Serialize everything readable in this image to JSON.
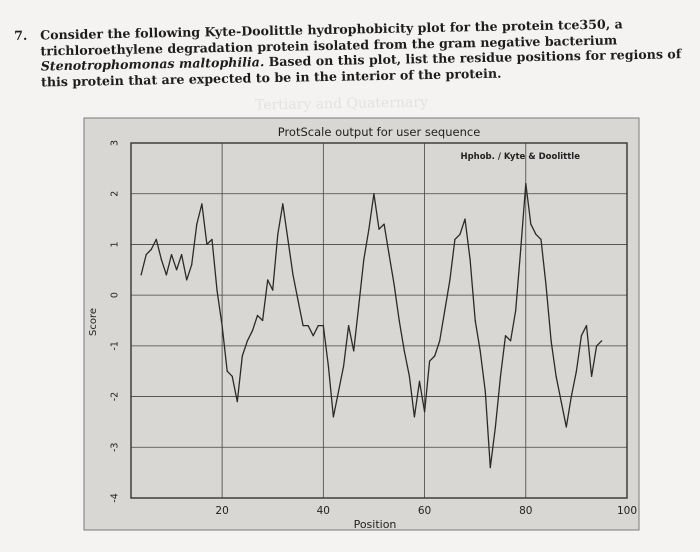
{
  "question": {
    "number": "7.",
    "text_1": "Consider the following Kyte-Doolittle hydrophobicity plot for the protein tce350, a trichloroethylene degradation protein isolated from the gram negative bacterium ",
    "organism": "Stenotrophomonas maltophilia.",
    "text_2": " Based on this plot, list the residue positions for regions of this protein that are expected to be in the interior of the protein."
  },
  "watermark": "Tertiary and Quaternary",
  "chart_data": {
    "type": "line",
    "title": "ProtScale output for user sequence",
    "legend": "Hphob. / Kyte & Doolittle",
    "legend_position": "top-right",
    "xlabel": "Position",
    "ylabel": "Score",
    "xlim": [
      2,
      100
    ],
    "ylim": [
      -4,
      3
    ],
    "xticks": [
      "20",
      "40",
      "60",
      "80",
      "100"
    ],
    "yticks": [
      "3",
      "2",
      "1",
      "0",
      "-1",
      "-2",
      "-3",
      "-4"
    ],
    "grid": true,
    "series": [
      {
        "name": "Hphob. / Kyte & Doolittle",
        "x": [
          4,
          5,
          6,
          7,
          8,
          9,
          10,
          11,
          12,
          13,
          14,
          15,
          16,
          17,
          18,
          19,
          20,
          21,
          22,
          23,
          24,
          25,
          26,
          27,
          28,
          29,
          30,
          31,
          32,
          33,
          34,
          35,
          36,
          37,
          38,
          39,
          40,
          41,
          42,
          43,
          44,
          45,
          46,
          47,
          48,
          49,
          50,
          51,
          52,
          53,
          54,
          55,
          56,
          57,
          58,
          59,
          60,
          61,
          62,
          63,
          64,
          65,
          66,
          67,
          68,
          69,
          70,
          71,
          72,
          73,
          74,
          75,
          76,
          77,
          78,
          79,
          80,
          81,
          82,
          83,
          84,
          85,
          86,
          87,
          88,
          89,
          90,
          91,
          92,
          93,
          94,
          95
        ],
        "values": [
          0.4,
          0.8,
          0.9,
          1.1,
          0.7,
          0.4,
          0.8,
          0.5,
          0.8,
          0.3,
          0.6,
          1.4,
          1.8,
          1.0,
          1.1,
          0.1,
          -0.6,
          -1.5,
          -1.6,
          -2.1,
          -1.2,
          -0.9,
          -0.7,
          -0.4,
          -0.5,
          0.3,
          0.1,
          1.2,
          1.8,
          1.1,
          0.4,
          -0.1,
          -0.6,
          -0.6,
          -0.8,
          -0.6,
          -0.6,
          -1.4,
          -2.4,
          -1.9,
          -1.4,
          -0.6,
          -1.1,
          -0.2,
          0.7,
          1.3,
          2.0,
          1.3,
          1.4,
          0.8,
          0.2,
          -0.5,
          -1.1,
          -1.6,
          -2.4,
          -1.7,
          -2.3,
          -1.3,
          -1.2,
          -0.9,
          -0.3,
          0.3,
          1.1,
          1.2,
          1.5,
          0.7,
          -0.5,
          -1.1,
          -1.9,
          -3.4,
          -2.6,
          -1.6,
          -0.8,
          -0.9,
          -0.3,
          0.9,
          2.2,
          1.4,
          1.2,
          1.1,
          0.2,
          -0.9,
          -1.6,
          -2.1,
          -2.6,
          -2.0,
          -1.5,
          -0.8,
          -0.6,
          -1.6,
          -1.0,
          -0.9
        ]
      }
    ]
  }
}
